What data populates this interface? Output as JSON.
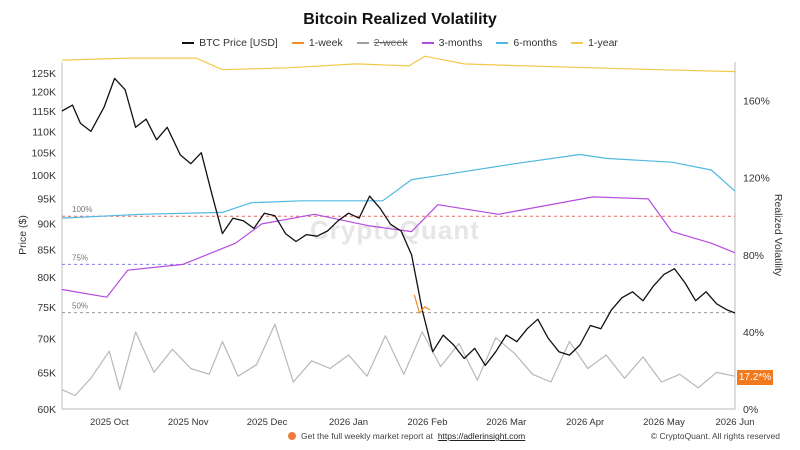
{
  "title": "Bitcoin Realized Volatility",
  "watermark": "CryptoQuant",
  "legend": [
    {
      "label": "BTC Price [USD]",
      "color": "#111111",
      "hidden": false
    },
    {
      "label": "1-week",
      "color": "#f28c28",
      "hidden": false
    },
    {
      "label": "2-week",
      "color": "#9aa0a6",
      "hidden": true
    },
    {
      "label": "3-months",
      "color": "#b44be0",
      "hidden": false
    },
    {
      "label": "6-months",
      "color": "#4fb8e0",
      "hidden": false
    },
    {
      "label": "1-year",
      "color": "#f2c94c",
      "hidden": false
    }
  ],
  "footer": {
    "promo_text": "Get the full weekly market report at",
    "promo_link": "https://adlerinsight.com",
    "copyright": "© CryptoQuant. All rights reserved"
  },
  "current_value_badge": "17.2*%",
  "chart_data": {
    "type": "line",
    "title": "Bitcoin Realized Volatility",
    "ylabel_left": "Price ($)",
    "ylabel_right": "Realized Volatility",
    "y_left_scale": "log",
    "y_left_ticks": [
      "60K",
      "65K",
      "70K",
      "75K",
      "80K",
      "85K",
      "90K",
      "95K",
      "100K",
      "105K",
      "110K",
      "115K",
      "120K",
      "125K"
    ],
    "y_left_range": [
      60000,
      128000
    ],
    "y_right_ticks": [
      "0%",
      "40%",
      "80%",
      "120%",
      "160%"
    ],
    "y_right_range": [
      0,
      180
    ],
    "x_ticks": [
      "2025 Oct",
      "2025 Nov",
      "2025 Dec",
      "2026 Jan",
      "2026 Feb",
      "2026 Mar",
      "2026 Apr",
      "2026 May",
      "2026 Jun"
    ],
    "x_range": [
      "2025-09-20",
      "2026-06-03"
    ],
    "reference_lines": [
      {
        "label": "100%",
        "value": 100,
        "color": "#e06b5a"
      },
      {
        "label": "75%",
        "value": 75,
        "color": "#8a7cf0"
      },
      {
        "label": "50%",
        "value": 50,
        "color": "#999999"
      }
    ],
    "grid": false,
    "legend_position": "top",
    "series": [
      {
        "name": "BTC Price [USD]",
        "axis": "left",
        "color": "#111111",
        "x": [
          "2025-09-20",
          "2025-09-24",
          "2025-09-27",
          "2025-10-01",
          "2025-10-06",
          "2025-10-10",
          "2025-10-14",
          "2025-10-18",
          "2025-10-22",
          "2025-10-26",
          "2025-10-30",
          "2025-11-04",
          "2025-11-08",
          "2025-11-12",
          "2025-11-16",
          "2025-11-20",
          "2025-11-24",
          "2025-11-28",
          "2025-12-02",
          "2025-12-06",
          "2025-12-10",
          "2025-12-14",
          "2025-12-18",
          "2025-12-22",
          "2025-12-26",
          "2025-12-30",
          "2026-01-03",
          "2026-01-07",
          "2026-01-11",
          "2026-01-15",
          "2026-01-19",
          "2026-01-23",
          "2026-01-27",
          "2026-01-31",
          "2026-02-04",
          "2026-02-08",
          "2026-02-12",
          "2026-02-16",
          "2026-02-20",
          "2026-02-24",
          "2026-02-28",
          "2026-03-04",
          "2026-03-08",
          "2026-03-12",
          "2026-03-16",
          "2026-03-20",
          "2026-03-24",
          "2026-03-28",
          "2026-04-01",
          "2026-04-05",
          "2026-04-09",
          "2026-04-13",
          "2026-04-17",
          "2026-04-21",
          "2026-04-25",
          "2026-04-29",
          "2026-05-03",
          "2026-05-07",
          "2026-05-11",
          "2026-05-15",
          "2026-05-19",
          "2026-05-23",
          "2026-05-27",
          "2026-05-31",
          "2026-06-03"
        ],
        "y": [
          115000,
          116500,
          112000,
          110000,
          116000,
          123500,
          120500,
          111000,
          113000,
          108000,
          111000,
          104500,
          102500,
          105000,
          96000,
          88000,
          91000,
          90500,
          89000,
          92000,
          91500,
          88000,
          86500,
          87800,
          87500,
          88500,
          90500,
          92000,
          91000,
          95500,
          93000,
          89800,
          88500,
          84000,
          74500,
          68000,
          70500,
          69000,
          67000,
          68500,
          66000,
          68000,
          70500,
          69500,
          71500,
          73000,
          70000,
          68000,
          67500,
          69000,
          72000,
          71500,
          74500,
          76500,
          77500,
          76000,
          78500,
          80500,
          81500,
          79000,
          76000,
          77500,
          75500,
          74500,
          74000
        ]
      },
      {
        "name": "1-week",
        "axis": "left",
        "color": "#f28c28",
        "x": [
          "2026-02-01",
          "2026-02-03",
          "2026-02-05",
          "2026-02-07"
        ],
        "y": [
          77000,
          74000,
          75000,
          74500
        ]
      },
      {
        "name": "1-year",
        "axis": "right",
        "color": "#f2c94c",
        "x": [
          "2025-09-20",
          "2025-10-15",
          "2025-11-10",
          "2025-11-20",
          "2025-12-15",
          "2026-01-10",
          "2026-01-30",
          "2026-02-05",
          "2026-02-20",
          "2026-03-15",
          "2026-04-10",
          "2026-05-05",
          "2026-06-03"
        ],
        "y": [
          181,
          182,
          182,
          176,
          177,
          179,
          178,
          183,
          179,
          178,
          177,
          176,
          175
        ]
      },
      {
        "name": "6-months",
        "axis": "right",
        "color": "#4fb8e0",
        "x": [
          "2025-09-20",
          "2025-10-20",
          "2025-11-20",
          "2025-12-01",
          "2025-12-20",
          "2026-01-20",
          "2026-01-31",
          "2026-02-10",
          "2026-03-10",
          "2026-04-05",
          "2026-04-15",
          "2026-05-10",
          "2026-05-25",
          "2026-06-03"
        ],
        "y": [
          99,
          101,
          102,
          107,
          108,
          108,
          119,
          121,
          127,
          132,
          130,
          128,
          124,
          113
        ]
      },
      {
        "name": "3-months",
        "axis": "right",
        "color": "#b44be0",
        "x": [
          "2025-09-20",
          "2025-10-07",
          "2025-10-15",
          "2025-11-05",
          "2025-11-25",
          "2025-12-05",
          "2025-12-25",
          "2026-01-15",
          "2026-01-31",
          "2026-02-10",
          "2026-03-05",
          "2026-04-10",
          "2026-05-01",
          "2026-05-10",
          "2026-05-25",
          "2026-06-03"
        ],
        "y": [
          62,
          58,
          72,
          75,
          86,
          96,
          101,
          95,
          92,
          106,
          101,
          110,
          109,
          92,
          86,
          81
        ]
      },
      {
        "name": "1-week vol (grey)",
        "axis": "right",
        "color": "#b8b8b8",
        "x": [
          "2025-09-20",
          "2025-09-25",
          "2025-10-01",
          "2025-10-08",
          "2025-10-12",
          "2025-10-18",
          "2025-10-25",
          "2025-11-01",
          "2025-11-08",
          "2025-11-15",
          "2025-11-20",
          "2025-11-26",
          "2025-12-03",
          "2025-12-10",
          "2025-12-17",
          "2025-12-24",
          "2025-12-31",
          "2026-01-07",
          "2026-01-14",
          "2026-01-21",
          "2026-01-28",
          "2026-02-04",
          "2026-02-11",
          "2026-02-18",
          "2026-02-25",
          "2026-03-04",
          "2026-03-11",
          "2026-03-18",
          "2026-03-25",
          "2026-04-01",
          "2026-04-08",
          "2026-04-15",
          "2026-04-22",
          "2026-04-29",
          "2026-05-06",
          "2026-05-13",
          "2026-05-20",
          "2026-05-27",
          "2026-06-03"
        ],
        "y": [
          10,
          7,
          16,
          30,
          10,
          40,
          19,
          31,
          21,
          18,
          35,
          17,
          23,
          44,
          14,
          25,
          21,
          28,
          17,
          38,
          18,
          40,
          22,
          34,
          15,
          37,
          29,
          18,
          14,
          35,
          21,
          28,
          16,
          27,
          14,
          18,
          11,
          19,
          17
        ]
      }
    ]
  }
}
